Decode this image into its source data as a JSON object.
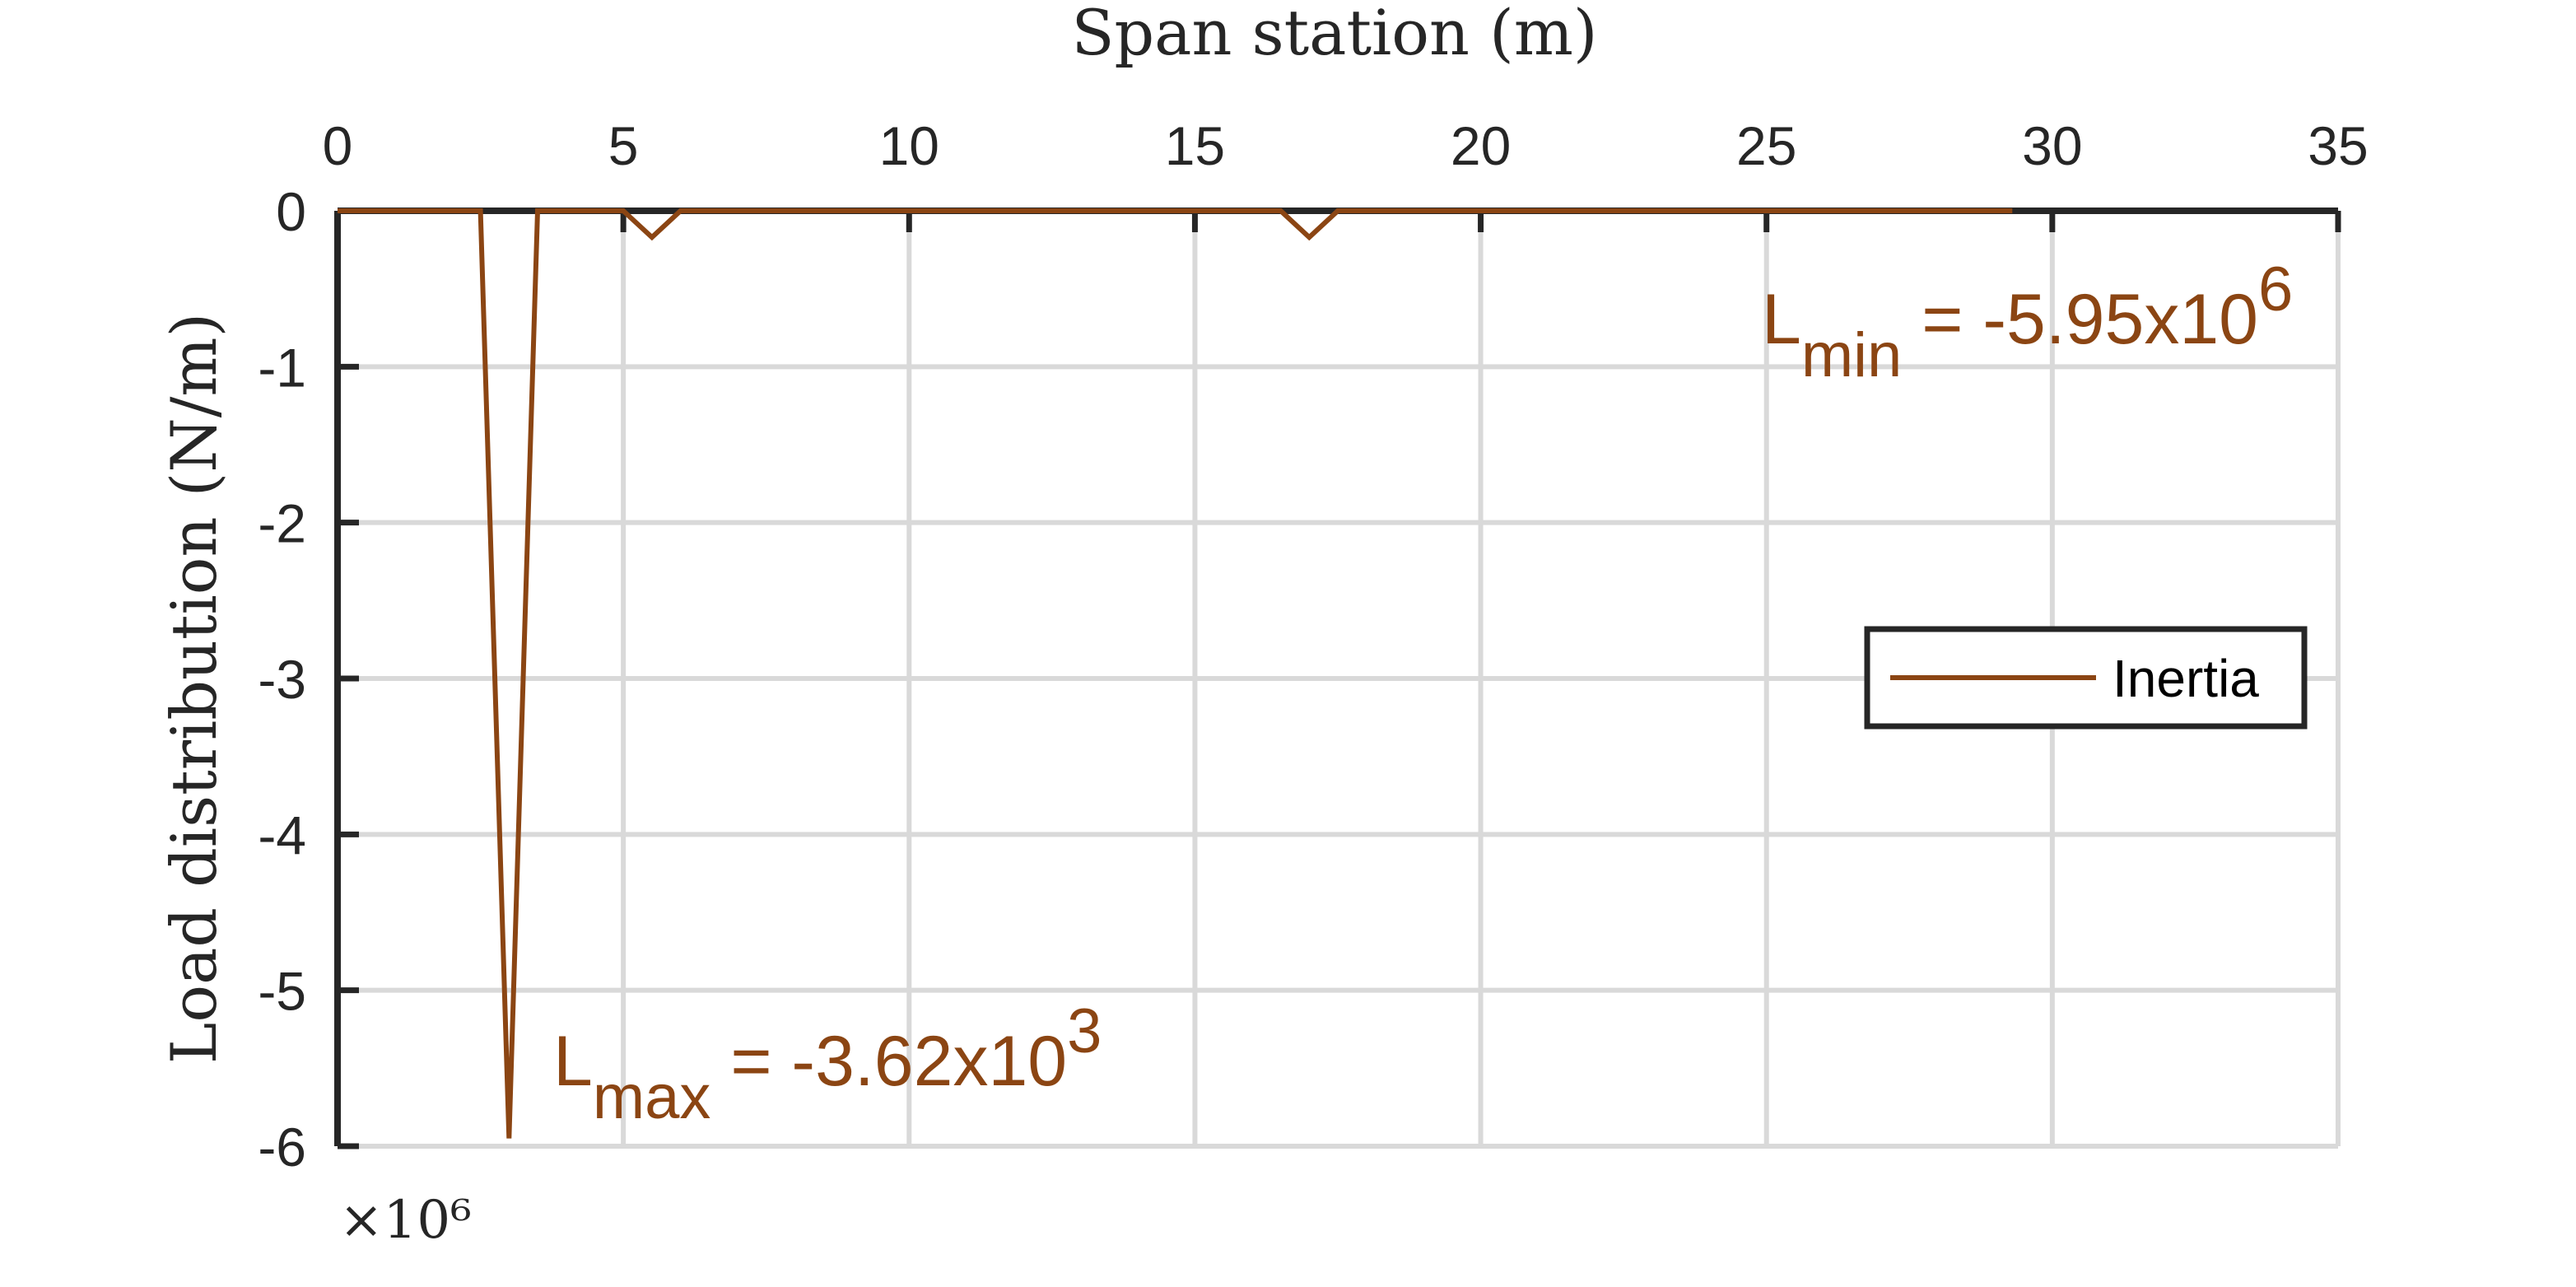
{
  "chart_data": {
    "type": "line",
    "title": "",
    "xlabel": "Span station (m)",
    "ylabel": "Load distribution (N/m)",
    "x_axis_location": "top",
    "xlim": [
      0,
      35
    ],
    "ylim": [
      -6,
      0
    ],
    "xticks": [
      0,
      5,
      10,
      15,
      20,
      25,
      30,
      35
    ],
    "xtick_labels": [
      "0",
      "5",
      "10",
      "15",
      "20",
      "25",
      "30",
      "35"
    ],
    "yticks": [
      0,
      -1,
      -2,
      -3,
      -4,
      -5,
      -6
    ],
    "ytick_labels": [
      "0",
      "-1",
      "-2",
      "-3",
      "-4",
      "-5",
      "-6"
    ],
    "y_exponent_label": "×10⁶",
    "y_scale_factor": 1000000,
    "grid": true,
    "legend_position": "right",
    "series": [
      {
        "name": "Inertia",
        "color": "#8B4513",
        "x": [
          0,
          2.5,
          3.0,
          3.5,
          5.0,
          5.5,
          6.0,
          16.5,
          17.0,
          17.5,
          29.3
        ],
        "y": [
          0,
          0,
          -5.95,
          0,
          0,
          -0.17,
          0,
          0,
          -0.17,
          0,
          0
        ]
      }
    ],
    "annotations": [
      {
        "base": "L",
        "subscript": "min",
        "value": " = -5.95x10",
        "power": "6"
      },
      {
        "base": "L",
        "subscript": "max",
        "value": " = -3.62x10",
        "power": "3"
      }
    ]
  }
}
